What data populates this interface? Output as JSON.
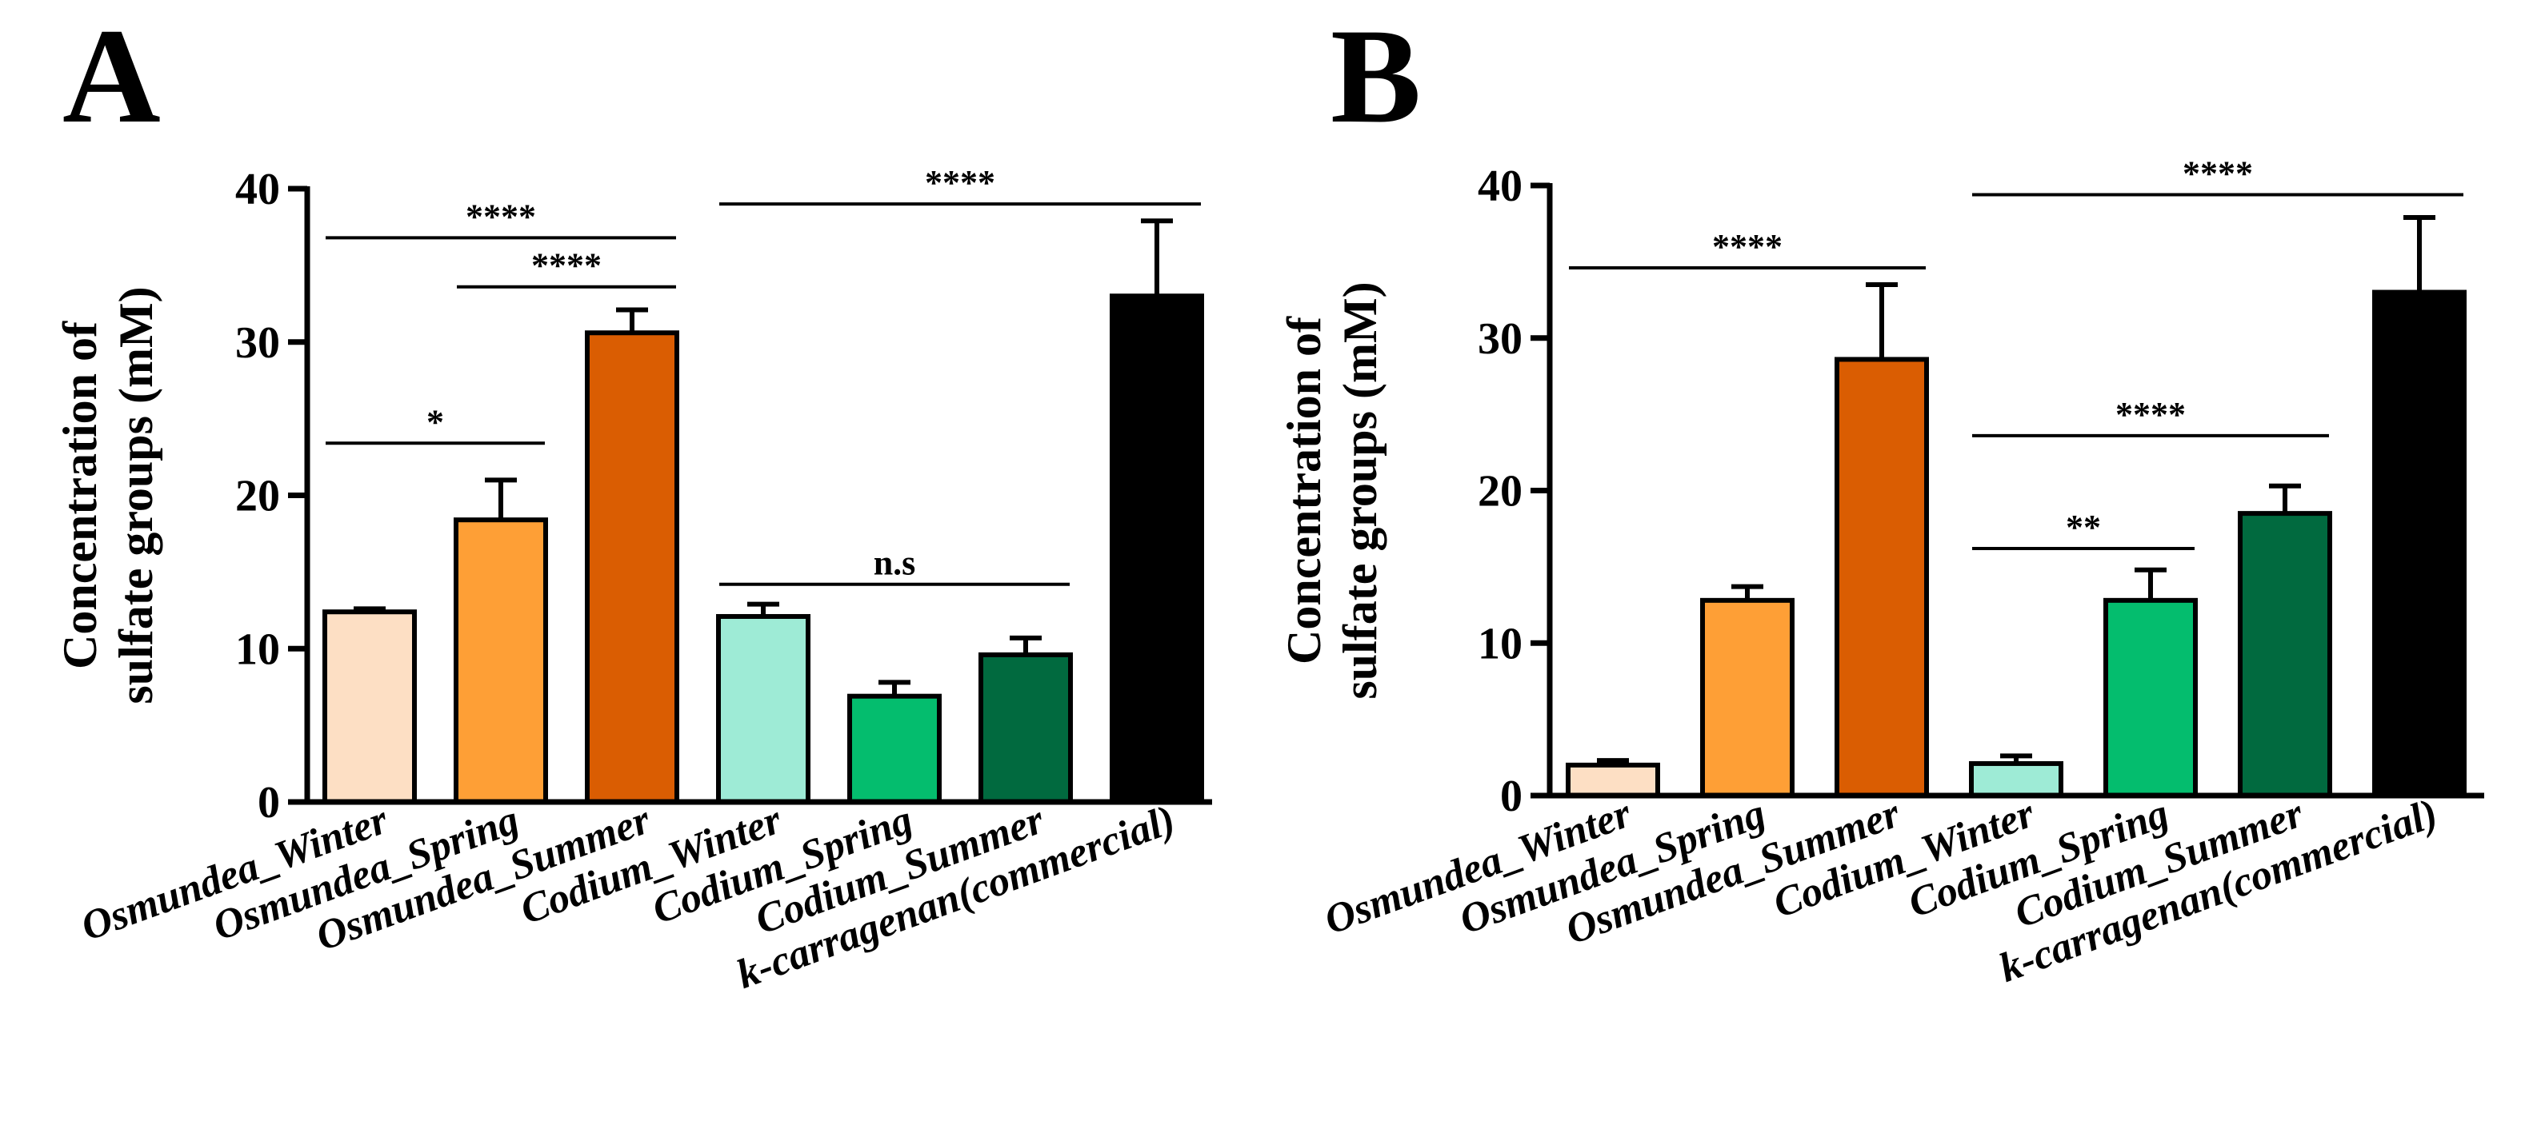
{
  "chart_data": [
    {
      "panel": "A",
      "type": "bar",
      "categories": [
        "Osmundea_Winter",
        "Osmundea_Spring",
        "Osmundea_Summer",
        "Codium_Winter",
        "Codium_Spring",
        "Codium_Summer",
        "k-carragenan(commercial)"
      ],
      "values": [
        12.4,
        18.4,
        30.6,
        12.1,
        6.9,
        9.6,
        33.0
      ],
      "errors": [
        0.2,
        2.6,
        1.5,
        0.8,
        0.9,
        1.1,
        4.9
      ],
      "colors": [
        "#FDDFC4",
        "#FE9F36",
        "#DA5D02",
        "#9EEBD6",
        "#04BD6E",
        "#016A3F",
        "#000000"
      ],
      "ylabel": [
        "Concentration of",
        "sulfate groups (mM)"
      ],
      "ylim": [
        0,
        40
      ],
      "yticks": [
        "0",
        "10",
        "20",
        "30",
        "40"
      ],
      "significance": [
        {
          "from": 0,
          "to": 1,
          "label": "*",
          "y": 23.4
        },
        {
          "from": 1,
          "to": 2,
          "label": "****",
          "y": 33.6
        },
        {
          "from": 0,
          "to": 2,
          "label": "****",
          "y": 36.8
        },
        {
          "from": 3,
          "to": 5,
          "label": "n.s",
          "y": 14.2
        },
        {
          "from": 3,
          "to": 6,
          "label": "****",
          "y": 39.0
        }
      ]
    },
    {
      "panel": "B",
      "type": "bar",
      "categories": [
        "Osmundea_Winter",
        "Osmundea_Spring",
        "Osmundea_Summer",
        "Codium_Winter",
        "Codium_Spring",
        "Codium_Summer",
        "k-carragenan(commercial)"
      ],
      "values": [
        2.0,
        12.8,
        28.6,
        2.1,
        12.8,
        18.5,
        33.0
      ],
      "errors": [
        0.3,
        0.9,
        4.9,
        0.5,
        2.0,
        1.8,
        4.9
      ],
      "colors": [
        "#FDDFC4",
        "#FE9F36",
        "#DA5D02",
        "#9EEBD6",
        "#04BD6E",
        "#016A3F",
        "#000000"
      ],
      "ylabel": [
        "Concentration of",
        "sulfate groups (mM)"
      ],
      "ylim": [
        0,
        40
      ],
      "yticks": [
        "0",
        "10",
        "20",
        "30",
        "40"
      ],
      "significance": [
        {
          "from": 0,
          "to": 2,
          "label": "****",
          "y": 34.6
        },
        {
          "from": 3,
          "to": 4,
          "label": "**",
          "y": 16.2
        },
        {
          "from": 3,
          "to": 5,
          "label": "****",
          "y": 23.6
        },
        {
          "from": 3,
          "to": 6,
          "label": "****",
          "y": 39.4
        }
      ]
    }
  ]
}
